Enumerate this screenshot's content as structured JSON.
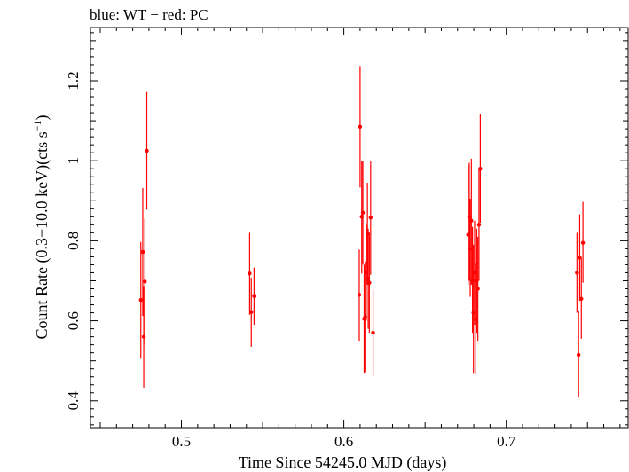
{
  "chart_data": {
    "type": "scatter",
    "header": "blue: WT − red: PC",
    "xlabel": "Time Since 54245.0 MJD (days)",
    "ylabel_main": "Count Rate (0.3−10.0 keV)(cts s",
    "ylabel_sup": "−1",
    "ylabel_close": ")",
    "xlim": [
      0.444,
      0.775
    ],
    "ylim": [
      0.333,
      1.333
    ],
    "xticks": [
      0.5,
      0.6,
      0.7
    ],
    "xtick_labels": [
      "0.5",
      "0.6",
      "0.7"
    ],
    "yticks": [
      0.4,
      0.6,
      0.8,
      1.0,
      1.2
    ],
    "ytick_labels": [
      "0.4",
      "0.6",
      "0.8",
      "1",
      "1.2"
    ],
    "grid": false,
    "series": [
      {
        "color": "#ff0000",
        "points": [
          {
            "x": 0.475,
            "y": 0.652,
            "lo": 0.505,
            "hi": 0.797
          },
          {
            "x": 0.4762,
            "y": 0.772,
            "lo": 0.612,
            "hi": 0.932
          },
          {
            "x": 0.4768,
            "y": 0.56,
            "lo": 0.433,
            "hi": 0.687
          },
          {
            "x": 0.4775,
            "y": 0.698,
            "lo": 0.54,
            "hi": 0.856
          },
          {
            "x": 0.4787,
            "y": 1.025,
            "lo": 0.878,
            "hi": 1.172
          },
          {
            "x": 0.542,
            "y": 0.718,
            "lo": 0.615,
            "hi": 0.82
          },
          {
            "x": 0.543,
            "y": 0.622,
            "lo": 0.535,
            "hi": 0.708
          },
          {
            "x": 0.5447,
            "y": 0.662,
            "lo": 0.59,
            "hi": 0.733
          },
          {
            "x": 0.6095,
            "y": 0.665,
            "lo": 0.55,
            "hi": 0.778
          },
          {
            "x": 0.61,
            "y": 1.085,
            "lo": 0.933,
            "hi": 1.237
          },
          {
            "x": 0.611,
            "y": 0.86,
            "lo": 0.718,
            "hi": 1.0
          },
          {
            "x": 0.6117,
            "y": 0.87,
            "lo": 0.74,
            "hi": 0.998
          },
          {
            "x": 0.6125,
            "y": 0.605,
            "lo": 0.47,
            "hi": 0.74
          },
          {
            "x": 0.6132,
            "y": 0.61,
            "lo": 0.472,
            "hi": 0.748
          },
          {
            "x": 0.6138,
            "y": 0.72,
            "lo": 0.6,
            "hi": 0.84
          },
          {
            "x": 0.6145,
            "y": 0.818,
            "lo": 0.69,
            "hi": 0.945
          },
          {
            "x": 0.615,
            "y": 0.705,
            "lo": 0.58,
            "hi": 0.83
          },
          {
            "x": 0.6157,
            "y": 0.695,
            "lo": 0.57,
            "hi": 0.82
          },
          {
            "x": 0.6165,
            "y": 0.858,
            "lo": 0.715,
            "hi": 0.998
          },
          {
            "x": 0.618,
            "y": 0.57,
            "lo": 0.462,
            "hi": 0.678
          },
          {
            "x": 0.6765,
            "y": 0.815,
            "lo": 0.69,
            "hi": 0.988
          },
          {
            "x": 0.6772,
            "y": 0.86,
            "lo": 0.7,
            "hi": 0.995
          },
          {
            "x": 0.6778,
            "y": 0.78,
            "lo": 0.66,
            "hi": 0.905
          },
          {
            "x": 0.6785,
            "y": 0.85,
            "lo": 0.69,
            "hi": 1.005
          },
          {
            "x": 0.6792,
            "y": 0.7,
            "lo": 0.57,
            "hi": 0.835
          },
          {
            "x": 0.6798,
            "y": 0.62,
            "lo": 0.47,
            "hi": 0.79
          },
          {
            "x": 0.6805,
            "y": 0.72,
            "lo": 0.59,
            "hi": 0.85
          },
          {
            "x": 0.6812,
            "y": 0.605,
            "lo": 0.465,
            "hi": 0.745
          },
          {
            "x": 0.6818,
            "y": 0.7,
            "lo": 0.57,
            "hi": 0.83
          },
          {
            "x": 0.6825,
            "y": 0.68,
            "lo": 0.55,
            "hi": 0.81
          },
          {
            "x": 0.6832,
            "y": 0.84,
            "lo": 0.7,
            "hi": 0.978
          },
          {
            "x": 0.684,
            "y": 0.98,
            "lo": 0.845,
            "hi": 1.117
          },
          {
            "x": 0.7435,
            "y": 0.72,
            "lo": 0.62,
            "hi": 0.82
          },
          {
            "x": 0.7445,
            "y": 0.515,
            "lo": 0.408,
            "hi": 0.625
          },
          {
            "x": 0.7452,
            "y": 0.758,
            "lo": 0.65,
            "hi": 0.866
          },
          {
            "x": 0.7462,
            "y": 0.655,
            "lo": 0.555,
            "hi": 0.757
          },
          {
            "x": 0.7472,
            "y": 0.795,
            "lo": 0.695,
            "hi": 0.897
          }
        ]
      }
    ]
  }
}
